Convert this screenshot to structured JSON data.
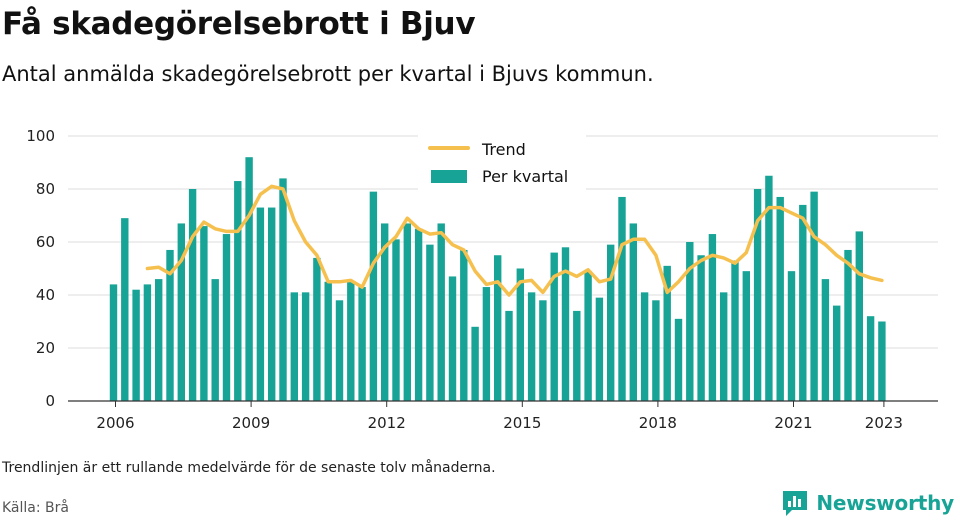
{
  "header": {
    "title": "Få skadegörelsebrott i Bjuv",
    "subtitle": "Antal anmälda skadegörelsebrott per kvartal i Bjuvs kommun."
  },
  "footer": {
    "note": "Trendlinjen är ett rullande medelvärde för de senaste tolv månaderna.",
    "source": "Källa: Brå",
    "brand": "Newsworthy"
  },
  "colors": {
    "bars": "#17a396",
    "trend": "#f6c04e",
    "grid": "#dddddd",
    "brand": "#17a396"
  },
  "icons": {
    "brand_logo": "bar-chart-speech-bubble-icon"
  },
  "chart_data": {
    "type": "bar",
    "x_start": "2006 Q1",
    "categories": [
      "2006 Q1",
      "2006 Q2",
      "2006 Q3",
      "2006 Q4",
      "2007 Q1",
      "2007 Q2",
      "2007 Q3",
      "2007 Q4",
      "2008 Q1",
      "2008 Q2",
      "2008 Q3",
      "2008 Q4",
      "2009 Q1",
      "2009 Q2",
      "2009 Q3",
      "2009 Q4",
      "2010 Q1",
      "2010 Q2",
      "2010 Q3",
      "2010 Q4",
      "2011 Q1",
      "2011 Q2",
      "2011 Q3",
      "2011 Q4",
      "2012 Q1",
      "2012 Q2",
      "2012 Q3",
      "2012 Q4",
      "2013 Q1",
      "2013 Q2",
      "2013 Q3",
      "2013 Q4",
      "2014 Q1",
      "2014 Q2",
      "2014 Q3",
      "2014 Q4",
      "2015 Q1",
      "2015 Q2",
      "2015 Q3",
      "2015 Q4",
      "2016 Q1",
      "2016 Q2",
      "2016 Q3",
      "2016 Q4",
      "2017 Q1",
      "2017 Q2",
      "2017 Q3",
      "2017 Q4",
      "2018 Q1",
      "2018 Q2",
      "2018 Q3",
      "2018 Q4",
      "2019 Q1",
      "2019 Q2",
      "2019 Q3",
      "2019 Q4",
      "2020 Q1",
      "2020 Q2",
      "2020 Q3",
      "2020 Q4",
      "2021 Q1",
      "2021 Q2",
      "2021 Q3",
      "2021 Q4",
      "2022 Q1",
      "2022 Q2",
      "2022 Q3",
      "2022 Q4",
      "2023 Q1"
    ],
    "series": [
      {
        "name": "Per kvartal",
        "values": [
          44,
          69,
          42,
          44,
          46,
          57,
          67,
          80,
          66,
          46,
          63,
          83,
          92,
          73,
          73,
          84,
          41,
          41,
          54,
          45,
          38,
          45,
          43,
          79,
          67,
          61,
          67,
          65,
          59,
          67,
          47,
          57,
          28,
          43,
          55,
          34,
          50,
          41,
          38,
          56,
          58,
          34,
          49,
          39,
          59,
          77,
          67,
          41,
          38,
          51,
          31,
          60,
          55,
          63,
          41,
          53,
          49,
          80,
          85,
          77,
          49,
          74,
          79,
          46,
          36,
          57,
          64,
          32,
          30
        ]
      },
      {
        "name": "Trend",
        "values": [
          null,
          null,
          null,
          50,
          50.5,
          48,
          53,
          62,
          67.5,
          65,
          64,
          64,
          70,
          78,
          81,
          80,
          68,
          60,
          55,
          45,
          45,
          45.5,
          43,
          52,
          58,
          62,
          69,
          65,
          63,
          63.5,
          59,
          57,
          49,
          44,
          45,
          40,
          45,
          45.5,
          41,
          47,
          49,
          47,
          49.5,
          45,
          46,
          59,
          61,
          61,
          55,
          41,
          45,
          50,
          53,
          55,
          54,
          52,
          56,
          68,
          73,
          73,
          71,
          69,
          62,
          59,
          55,
          52,
          48,
          46.5,
          45.5
        ]
      }
    ],
    "x_ticks": [
      "2006",
      "2009",
      "2012",
      "2015",
      "2018",
      "2021",
      "2023"
    ],
    "y_ticks": [
      0,
      20,
      40,
      60,
      80,
      100
    ],
    "ylim": [
      0,
      100
    ],
    "grid": true,
    "legend_position": "top-center"
  }
}
